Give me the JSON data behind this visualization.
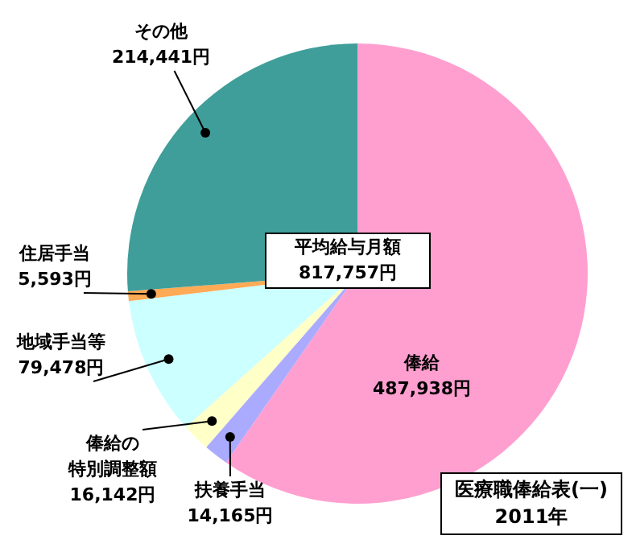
{
  "chart_data": {
    "type": "pie",
    "title": "医療職俸給表(一)",
    "subtitle": "2011年",
    "categories": [
      "俸給",
      "扶養手当",
      "俸給の特別調整額",
      "地域手当等",
      "住居手当",
      "その他"
    ],
    "values": [
      487938,
      14165,
      16142,
      79478,
      5593,
      214441
    ],
    "value_labels": [
      "487,938円",
      "14,165円",
      "16,142円",
      "79,478円",
      "5,593円",
      "214,441円"
    ],
    "colors": [
      "#ff9fd0",
      "#aaaaff",
      "#ffffc8",
      "#ccffff",
      "#ffaa55",
      "#3f9e9a"
    ],
    "annotations": [
      "平均給与月額",
      "817,757円"
    ],
    "legend": false
  }
}
